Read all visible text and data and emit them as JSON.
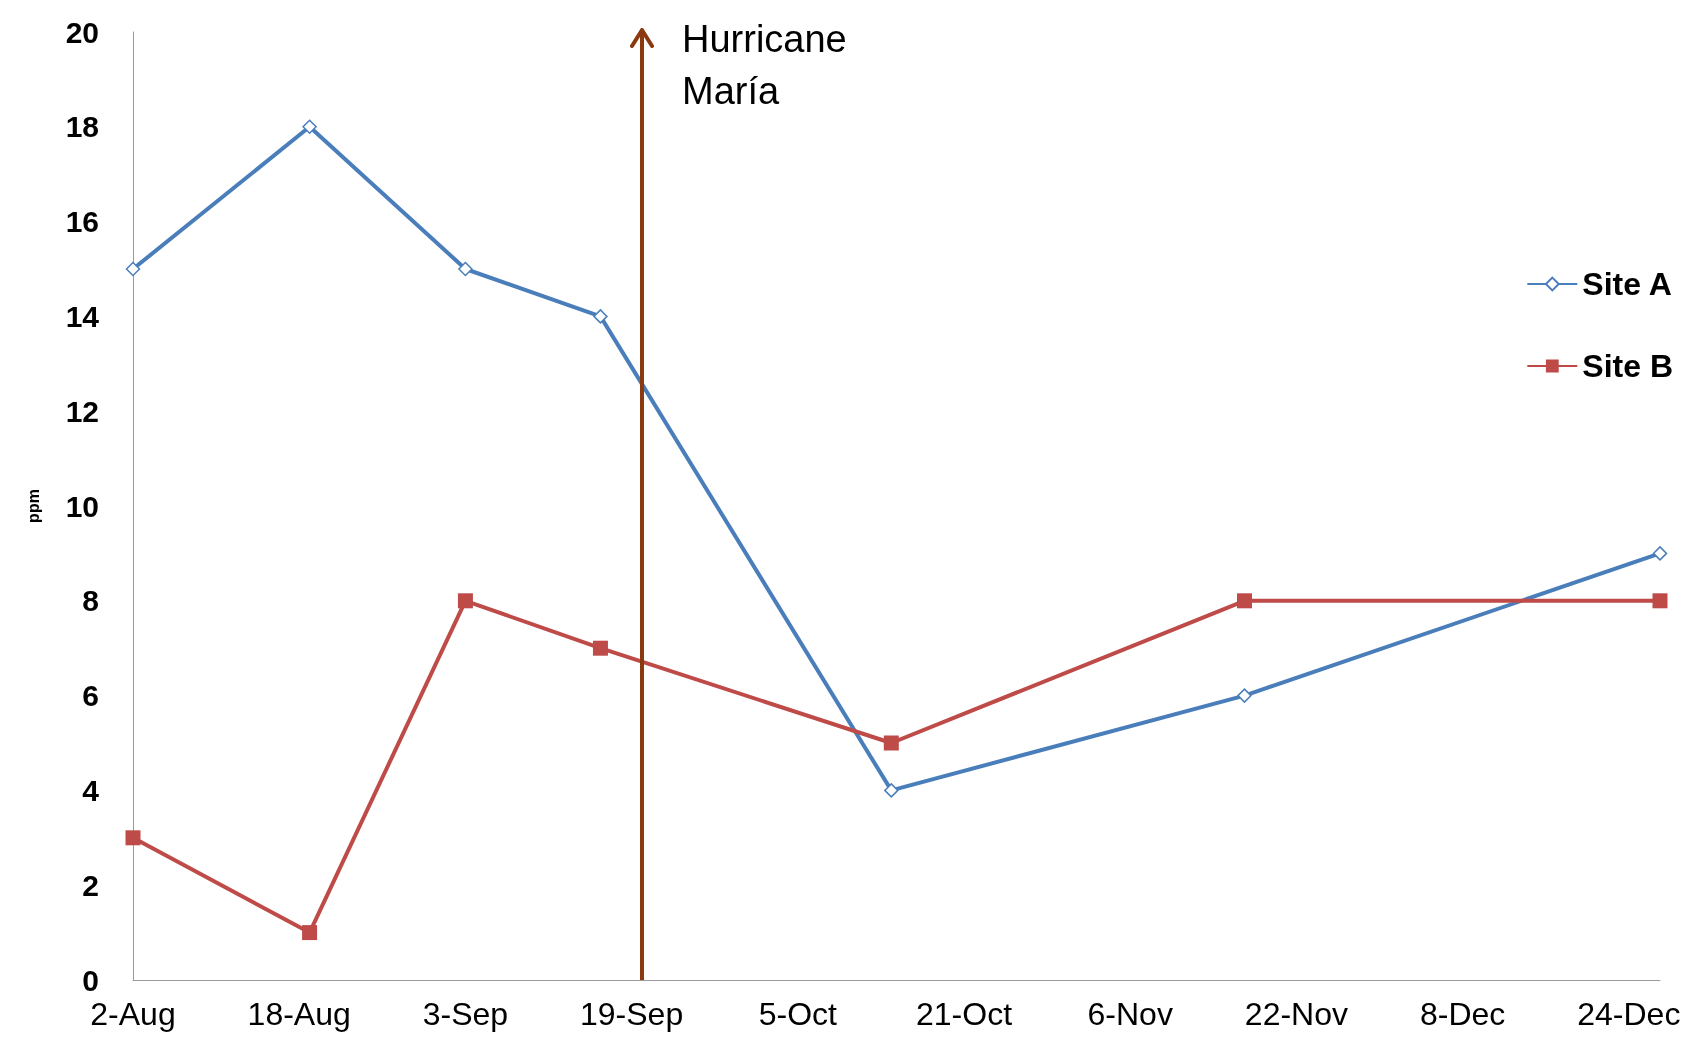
{
  "chart_data": {
    "type": "line",
    "ylabel": "ppm",
    "xlim": [
      "--08-02",
      "--12-27"
    ],
    "xticks": [
      {
        "value": "--08-02",
        "label": "2-Aug"
      },
      {
        "value": "--08-18",
        "label": "18-Aug"
      },
      {
        "value": "--09-03",
        "label": "3-Sep"
      },
      {
        "value": "--09-19",
        "label": "19-Sep"
      },
      {
        "value": "--10-05",
        "label": "5-Oct"
      },
      {
        "value": "--10-21",
        "label": "21-Oct"
      },
      {
        "value": "--11-06",
        "label": "6-Nov"
      },
      {
        "value": "--11-22",
        "label": "22-Nov"
      },
      {
        "value": "--12-08",
        "label": "8-Dec"
      },
      {
        "value": "--12-24",
        "label": "24-Dec"
      }
    ],
    "ylim": [
      0,
      20
    ],
    "yticks": [
      0,
      2,
      4,
      6,
      8,
      10,
      12,
      14,
      16,
      18,
      20
    ],
    "series": [
      {
        "name": "Site A",
        "color": "#4a7ebb",
        "marker": "diamond",
        "x": [
          "--08-02",
          "--08-19",
          "--09-03",
          "--09-16",
          "--10-14",
          "--11-17",
          "--12-27"
        ],
        "values": [
          15,
          18,
          15,
          14,
          4,
          6,
          9
        ]
      },
      {
        "name": "Site B",
        "color": "#be4b48",
        "marker": "square",
        "x": [
          "--08-02",
          "--08-19",
          "--09-03",
          "--09-16",
          "--10-14",
          "--11-17",
          "--12-27"
        ],
        "values": [
          3,
          1,
          8,
          7,
          5,
          8,
          8
        ]
      }
    ],
    "ref_lines": [
      {
        "axis": "x",
        "value": "--09-20",
        "label": "Hurricane María",
        "color": "#8b3a0f"
      }
    ],
    "grid": false,
    "legend": "right"
  }
}
